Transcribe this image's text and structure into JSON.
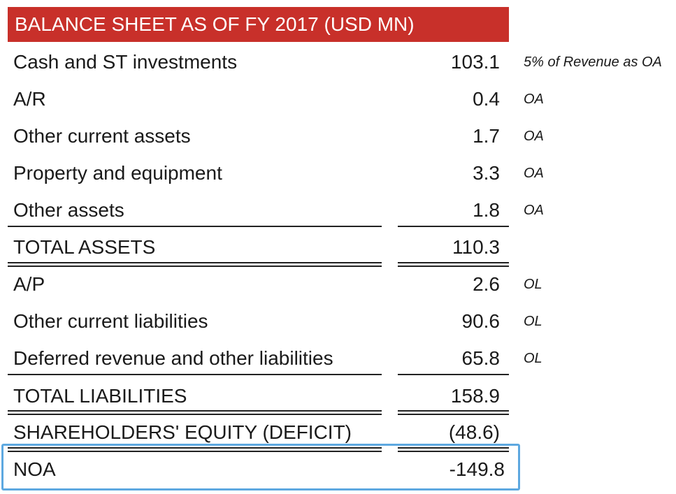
{
  "header": {
    "title": "BALANCE SHEET AS OF FY 2017 (USD MN)"
  },
  "colors": {
    "header_bg": "#c8302a",
    "highlight_border": "#5da8e0"
  },
  "rows": [
    {
      "label": "Cash and ST investments",
      "value": "103.1",
      "note": "5% of Revenue as OA"
    },
    {
      "label": "A/R",
      "value": "0.4",
      "note": "OA"
    },
    {
      "label": "Other current assets",
      "value": "1.7",
      "note": "OA"
    },
    {
      "label": "Property and equipment",
      "value": "3.3",
      "note": "OA"
    },
    {
      "label": "Other assets",
      "value": "1.8",
      "note": "OA"
    },
    {
      "label": "TOTAL ASSETS",
      "value": "110.3",
      "note": ""
    },
    {
      "label": "A/P",
      "value": "2.6",
      "note": "OL"
    },
    {
      "label": "Other current liabilities",
      "value": "90.6",
      "note": "OL"
    },
    {
      "label": "Deferred revenue and other liabilities",
      "value": "65.8",
      "note": "OL"
    },
    {
      "label": "TOTAL LIABILITIES",
      "value": "158.9",
      "note": ""
    },
    {
      "label": "SHAREHOLDERS' EQUITY (DEFICIT)",
      "value": "(48.6)",
      "note": ""
    },
    {
      "label": "NOA",
      "value": "-149.8",
      "note": ""
    }
  ]
}
